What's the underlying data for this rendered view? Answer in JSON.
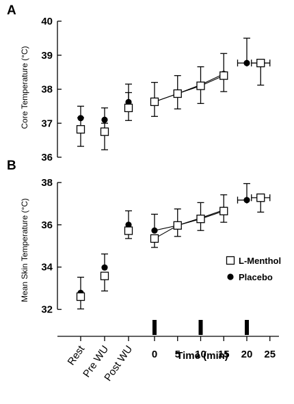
{
  "chart_data": [
    {
      "panel": "A",
      "type": "scatter",
      "ylabel": "Core Temperature (°C)",
      "ylim": [
        36,
        40
      ],
      "yticks": [
        36,
        37,
        38,
        39,
        40
      ],
      "series": [
        {
          "name": "L-Menthol",
          "marker": "open-square",
          "points": [
            {
              "x": "Rest",
              "y": 36.82,
              "ylo": 36.32,
              "yhi": 37.16
            },
            {
              "x": "Pre WU",
              "y": 36.75,
              "ylo": 36.22,
              "yhi": 37.0
            },
            {
              "x": "Post WU",
              "y": 37.45,
              "ylo": 37.08,
              "yhi": 37.9
            },
            {
              "x": 0,
              "y": 37.63,
              "ylo": 37.2,
              "yhi": 38.2
            },
            {
              "x": 5,
              "y": 37.87,
              "ylo": 37.42,
              "yhi": 38.4
            },
            {
              "x": 10,
              "y": 38.1,
              "ylo": 37.58,
              "yhi": 38.66
            },
            {
              "x": 15,
              "y": 38.4,
              "ylo": 37.93,
              "yhi": 39.05
            },
            {
              "x": 23,
              "y": 38.77,
              "ylo": 38.12,
              "yhi": 38.77,
              "xlo": 21,
              "xhi": 25
            }
          ]
        },
        {
          "name": "Placebo",
          "marker": "filled-circle",
          "points": [
            {
              "x": "Rest",
              "y": 37.15,
              "ylo": 37.15,
              "yhi": 37.5
            },
            {
              "x": "Pre WU",
              "y": 37.1,
              "ylo": 37.1,
              "yhi": 37.45
            },
            {
              "x": "Post WU",
              "y": 37.62,
              "ylo": 37.62,
              "yhi": 38.15
            },
            {
              "x": 0,
              "y": 37.63
            },
            {
              "x": 5,
              "y": 37.87
            },
            {
              "x": 10,
              "y": 38.13
            },
            {
              "x": 15,
              "y": 38.45
            },
            {
              "x": 20,
              "y": 38.77,
              "ylo": 38.77,
              "yhi": 39.5,
              "xlo": 18,
              "xhi": 20
            }
          ]
        }
      ]
    },
    {
      "panel": "B",
      "type": "scatter",
      "ylabel": "Mean Skin Temperature (°C)",
      "ylim": [
        31.5,
        38
      ],
      "yticks": [
        32,
        34,
        36,
        38
      ],
      "xlabel": "Time (min)",
      "categories": [
        "Rest",
        "Pre WU",
        "Post WU"
      ],
      "xticks": [
        0,
        5,
        10,
        15,
        20,
        25
      ],
      "event_markers": [
        0,
        10,
        20
      ],
      "legend": {
        "position": "right",
        "entries": [
          "L-Menthol",
          "Placebo"
        ]
      },
      "series": [
        {
          "name": "L-Menthol",
          "marker": "open-square",
          "points": [
            {
              "x": "Rest",
              "y": 32.6,
              "ylo": 32.02,
              "yhi": 32.6
            },
            {
              "x": "Pre WU",
              "y": 33.58,
              "ylo": 32.87,
              "yhi": 33.58
            },
            {
              "x": "Post WU",
              "y": 35.72,
              "ylo": 35.35,
              "yhi": 35.72
            },
            {
              "x": 0,
              "y": 35.35,
              "ylo": 34.93,
              "yhi": 35.35
            },
            {
              "x": 5,
              "y": 35.97,
              "ylo": 35.45,
              "yhi": 35.97
            },
            {
              "x": 10,
              "y": 36.28,
              "ylo": 35.73,
              "yhi": 36.28
            },
            {
              "x": 15,
              "y": 36.65,
              "ylo": 36.12,
              "yhi": 36.65
            },
            {
              "x": 23,
              "y": 37.28,
              "ylo": 36.6,
              "yhi": 37.28,
              "xlo": 21,
              "xhi": 25
            }
          ]
        },
        {
          "name": "Placebo",
          "marker": "filled-circle",
          "points": [
            {
              "x": "Rest",
              "y": 32.78,
              "ylo": 32.78,
              "yhi": 33.52
            },
            {
              "x": "Pre WU",
              "y": 33.98,
              "ylo": 33.98,
              "yhi": 34.62
            },
            {
              "x": "Post WU",
              "y": 36.0,
              "ylo": 36.0,
              "yhi": 36.66
            },
            {
              "x": 0,
              "y": 35.73,
              "ylo": 35.73,
              "yhi": 36.5
            },
            {
              "x": 5,
              "y": 35.97,
              "ylo": 35.97,
              "yhi": 36.75
            },
            {
              "x": 10,
              "y": 36.32,
              "ylo": 36.32,
              "yhi": 37.05
            },
            {
              "x": 15,
              "y": 36.7,
              "ylo": 36.7,
              "yhi": 37.42
            },
            {
              "x": 20,
              "y": 37.17,
              "ylo": 37.17,
              "yhi": 37.95,
              "xlo": 18,
              "xhi": 20
            }
          ]
        }
      ]
    }
  ]
}
